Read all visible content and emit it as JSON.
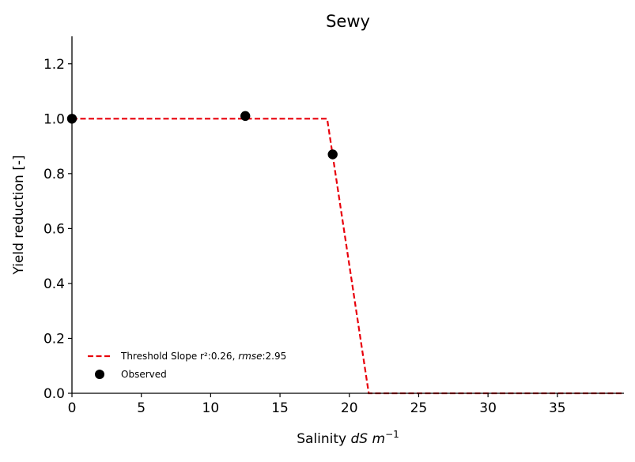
{
  "chart_data": {
    "type": "line",
    "title": "Sewy",
    "xlabel_prefix": "Salinity ",
    "xlabel_unit_base": "dS m",
    "xlabel_unit_exp": "−1",
    "ylabel": "Yield reduction [-]",
    "xlim": [
      0,
      39.8
    ],
    "ylim": [
      0,
      1.3
    ],
    "xticks": [
      0,
      5,
      10,
      15,
      20,
      25,
      30,
      35
    ],
    "yticks": [
      0.0,
      0.2,
      0.4,
      0.6,
      0.8,
      1.0,
      1.2
    ],
    "xtick_labels": [
      "0",
      "5",
      "10",
      "15",
      "20",
      "25",
      "30",
      "35"
    ],
    "ytick_labels": [
      "0.0",
      "0.2",
      "0.4",
      "0.6",
      "0.8",
      "1.0",
      "1.2"
    ],
    "grid": false,
    "legend_position": "bottom-left",
    "series": [
      {
        "name_prefix": "Threshold Slope r²:0.26, ",
        "name_rmse_label": "rmse",
        "name_suffix": ":2.95",
        "kind": "line",
        "style": "dashed",
        "color": "#e8000b",
        "x": [
          0,
          18.4,
          21.4,
          39.8
        ],
        "y": [
          1.0,
          1.0,
          0.0,
          0.0
        ]
      },
      {
        "name": "Observed",
        "kind": "scatter",
        "color": "#000000",
        "x": [
          0,
          12.5,
          18.8
        ],
        "y": [
          1.0,
          1.01,
          0.87
        ]
      }
    ]
  }
}
